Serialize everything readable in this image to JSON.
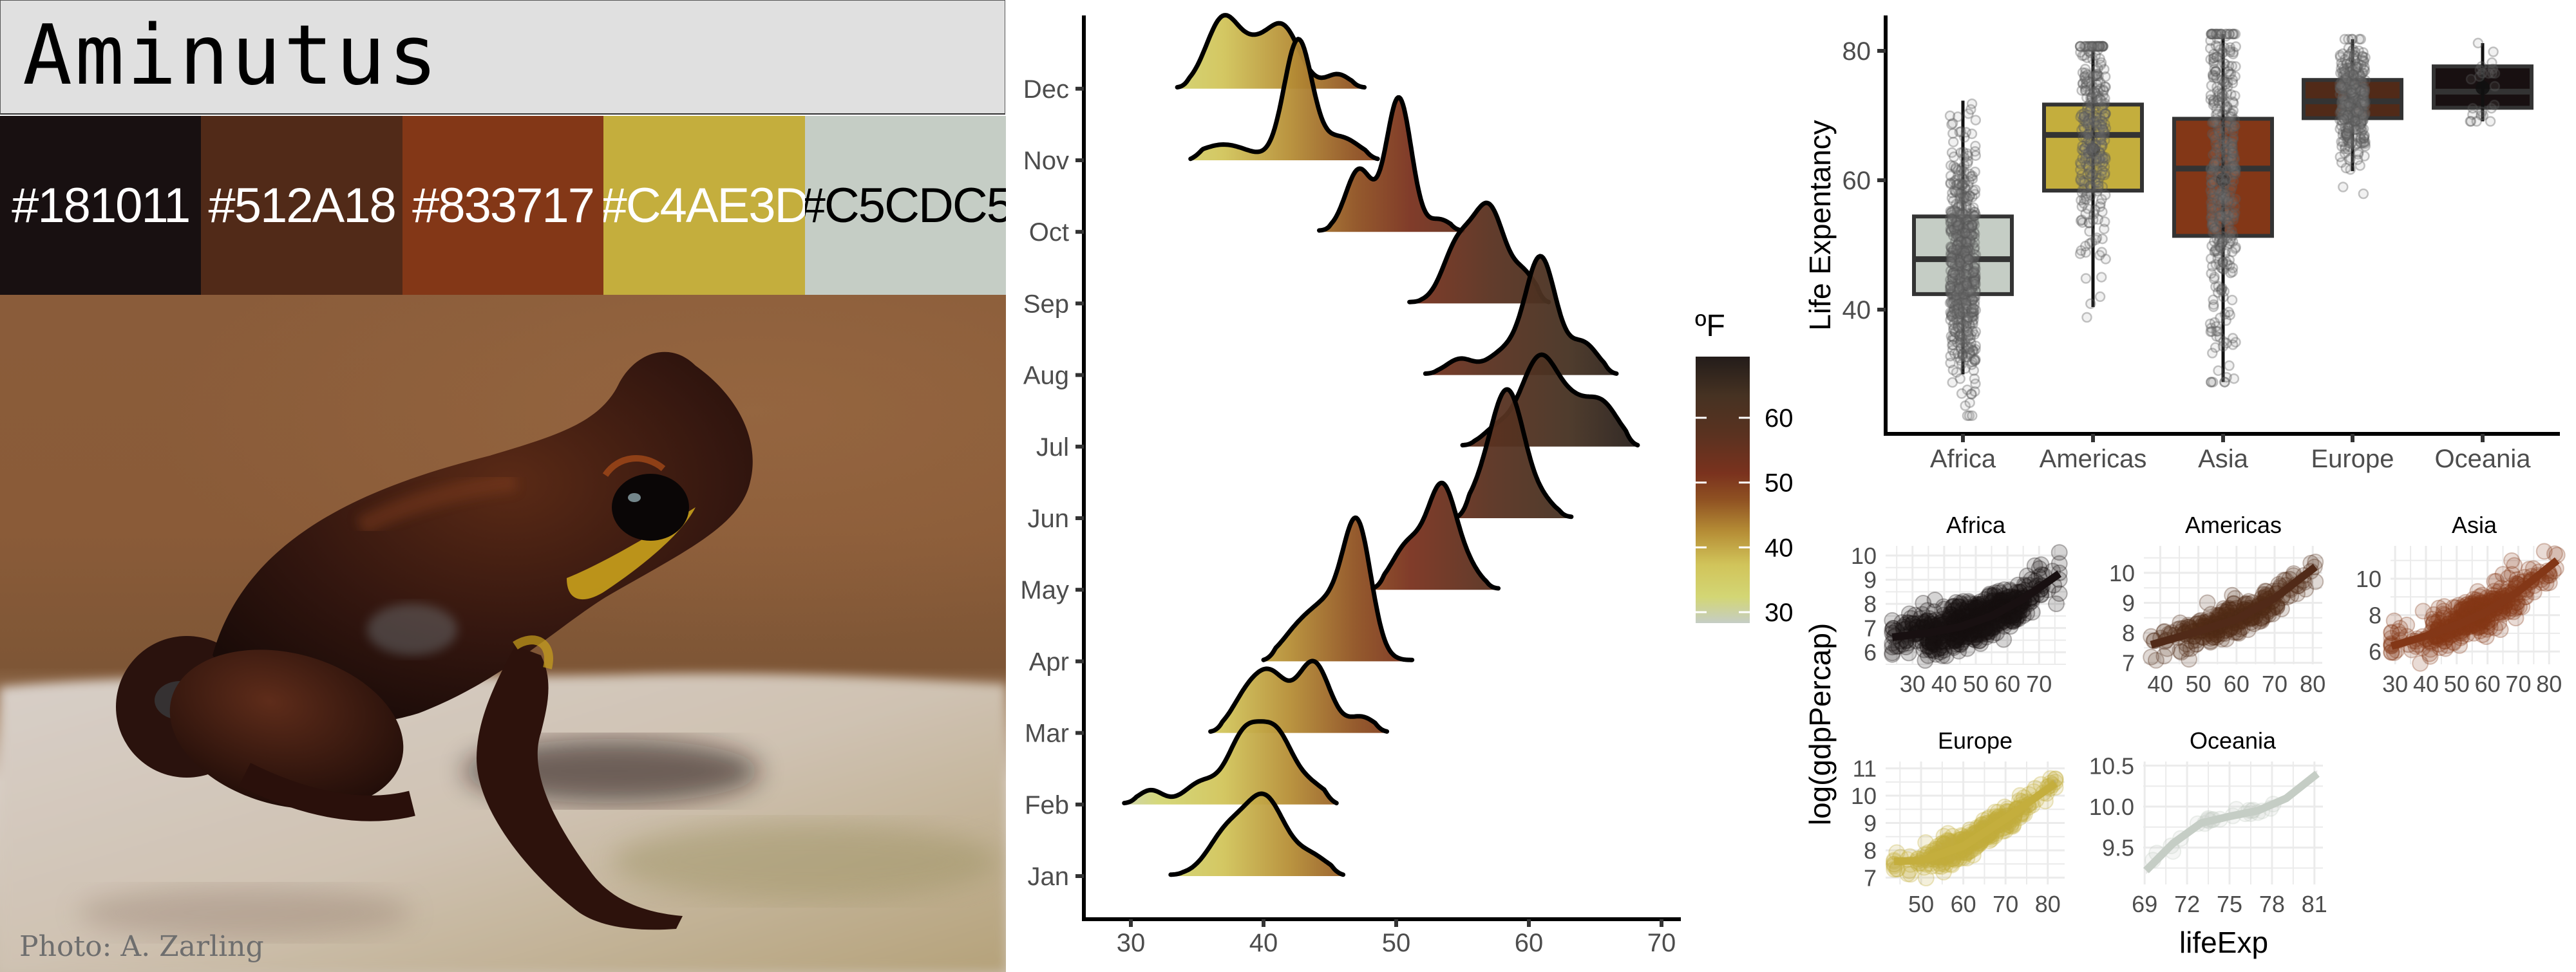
{
  "title": "Aminutus",
  "palette": [
    {
      "hex": "#181011",
      "label": "#181011",
      "text_color": "#ffffff"
    },
    {
      "hex": "#512A18",
      "label": "#512A18",
      "text_color": "#ffffff"
    },
    {
      "hex": "#833717",
      "label": "#833717",
      "text_color": "#ffffff"
    },
    {
      "hex": "#C4AE3D",
      "label": "#C4AE3D",
      "text_color": "#ffffff"
    },
    {
      "hex": "#C5CDC5",
      "label": "#C5CDC5",
      "text_color": "#000000"
    }
  ],
  "photo": {
    "credit": "Photo: A. Zarling",
    "subject": "frog-photo"
  },
  "chart_data": [
    {
      "type": "ridgeline",
      "title": "",
      "xlabel": "",
      "ylabel": "",
      "xlim": [
        26.5,
        71.5
      ],
      "x_ticks": [
        "30",
        "40",
        "50",
        "60",
        "70"
      ],
      "x_tick_values": [
        30,
        40,
        50,
        60,
        70
      ],
      "categories": [
        "Jan",
        "Feb",
        "Mar",
        "Apr",
        "May",
        "Jun",
        "Jul",
        "Aug",
        "Sep",
        "Oct",
        "Nov",
        "Dec"
      ],
      "fill_scale": {
        "title": "ºF",
        "ticks": [
          "30",
          "40",
          "50",
          "60"
        ],
        "tick_values": [
          30,
          40,
          50,
          60
        ],
        "range": [
          28,
          69
        ],
        "stops": [
          {
            "v": 28,
            "c": "#C5CDC5"
          },
          {
            "v": 32,
            "c": "#D3D675"
          },
          {
            "v": 37,
            "c": "#D1C45A"
          },
          {
            "v": 42,
            "c": "#B68E36"
          },
          {
            "v": 47,
            "c": "#8F5122"
          },
          {
            "v": 51,
            "c": "#7A321E"
          },
          {
            "v": 57,
            "c": "#5A3220"
          },
          {
            "v": 63,
            "c": "#463222"
          },
          {
            "v": 69,
            "c": "#231C1A"
          }
        ]
      },
      "series": [
        {
          "name": "Jan",
          "range": [
            33,
            46
          ],
          "components": [
            {
              "mu": 40.1,
              "sd": 1.5,
              "w": 1.05
            },
            {
              "mu": 37.2,
              "sd": 1.4,
              "w": 0.55
            },
            {
              "mu": 43.6,
              "sd": 1.3,
              "w": 0.25
            }
          ]
        },
        {
          "name": "Feb",
          "range": [
            29.5,
            45.5
          ],
          "components": [
            {
              "mu": 38.6,
              "sd": 1.3,
              "w": 0.95
            },
            {
              "mu": 41.0,
              "sd": 1.2,
              "w": 0.85
            },
            {
              "mu": 31.5,
              "sd": 0.9,
              "w": 0.18
            },
            {
              "mu": 35.3,
              "sd": 1.2,
              "w": 0.28
            },
            {
              "mu": 43.5,
              "sd": 1.3,
              "w": 0.25
            }
          ]
        },
        {
          "name": "Mar",
          "range": [
            36,
            49.3
          ],
          "components": [
            {
              "mu": 40.5,
              "sd": 1.3,
              "w": 0.78
            },
            {
              "mu": 43.8,
              "sd": 1.2,
              "w": 0.95
            },
            {
              "mu": 38.5,
              "sd": 1.1,
              "w": 0.35
            },
            {
              "mu": 47.4,
              "sd": 1.0,
              "w": 0.2
            }
          ]
        },
        {
          "name": "Apr",
          "range": [
            40,
            51.2
          ],
          "components": [
            {
              "mu": 47.1,
              "sd": 1.05,
              "w": 1.7
            },
            {
              "mu": 44.8,
              "sd": 1.6,
              "w": 0.75
            },
            {
              "mu": 42.3,
              "sd": 1.2,
              "w": 0.25
            }
          ]
        },
        {
          "name": "May",
          "range": [
            48.2,
            57.7
          ],
          "components": [
            {
              "mu": 53.5,
              "sd": 1.1,
              "w": 1.4
            },
            {
              "mu": 50.9,
              "sd": 1.2,
              "w": 0.6
            },
            {
              "mu": 55.6,
              "sd": 0.9,
              "w": 0.2
            }
          ]
        },
        {
          "name": "Jun",
          "range": [
            54.6,
            63.2
          ],
          "components": [
            {
              "mu": 58.4,
              "sd": 1.3,
              "w": 1.75
            },
            {
              "mu": 56.2,
              "sd": 1.1,
              "w": 0.2
            },
            {
              "mu": 61.2,
              "sd": 0.9,
              "w": 0.15
            }
          ]
        },
        {
          "name": "Jul",
          "range": [
            55,
            68.2
          ],
          "components": [
            {
              "mu": 60.9,
              "sd": 1.5,
              "w": 1.25
            },
            {
              "mu": 65.4,
              "sd": 1.3,
              "w": 0.6
            },
            {
              "mu": 57.5,
              "sd": 1.0,
              "w": 0.2
            },
            {
              "mu": 63.4,
              "sd": 1.0,
              "w": 0.25
            }
          ]
        },
        {
          "name": "Aug",
          "range": [
            52.2,
            66.6
          ],
          "components": [
            {
              "mu": 60.9,
              "sd": 1.15,
              "w": 1.6
            },
            {
              "mu": 64.1,
              "sd": 1.1,
              "w": 0.42
            },
            {
              "mu": 54.8,
              "sd": 1.0,
              "w": 0.2
            },
            {
              "mu": 58.2,
              "sd": 1.3,
              "w": 0.3
            }
          ]
        },
        {
          "name": "Sep",
          "range": [
            51,
            61.5
          ],
          "components": [
            {
              "mu": 57.0,
              "sd": 1.2,
              "w": 1.3
            },
            {
              "mu": 54.6,
              "sd": 1.1,
              "w": 0.75
            },
            {
              "mu": 59.7,
              "sd": 0.9,
              "w": 0.35
            }
          ]
        },
        {
          "name": "Oct",
          "range": [
            44.2,
            55
          ],
          "components": [
            {
              "mu": 50.2,
              "sd": 0.95,
              "w": 1.85
            },
            {
              "mu": 47.2,
              "sd": 1.0,
              "w": 0.85
            },
            {
              "mu": 53.3,
              "sd": 0.8,
              "w": 0.15
            }
          ]
        },
        {
          "name": "Nov",
          "range": [
            34.5,
            48.6
          ],
          "components": [
            {
              "mu": 42.6,
              "sd": 1.05,
              "w": 1.65
            },
            {
              "mu": 37.0,
              "sd": 1.8,
              "w": 0.2
            },
            {
              "mu": 45.8,
              "sd": 1.4,
              "w": 0.3
            }
          ]
        },
        {
          "name": "Dec",
          "range": [
            33.5,
            47.6
          ],
          "components": [
            {
              "mu": 37.0,
              "sd": 1.3,
              "w": 0.98
            },
            {
              "mu": 41.4,
              "sd": 1.3,
              "w": 0.85
            },
            {
              "mu": 39.3,
              "sd": 1.0,
              "w": 0.3
            },
            {
              "mu": 45.6,
              "sd": 0.9,
              "w": 0.18
            }
          ]
        }
      ]
    },
    {
      "type": "box",
      "title": "",
      "xlabel": "",
      "ylabel": "Life Expentancy",
      "ylim": [
        21,
        86.5
      ],
      "y_ticks": [
        "40",
        "60",
        "80"
      ],
      "y_tick_values": [
        40,
        60,
        80
      ],
      "categories": [
        "Africa",
        "Americas",
        "Asia",
        "Europe",
        "Oceania"
      ],
      "series": [
        {
          "name": "Africa",
          "fill": "#C5CDC5",
          "q1": 42.4,
          "median": 47.8,
          "q3": 54.4,
          "whisker_low": 30.0,
          "whisker_high": 72.3,
          "mean": 48.9,
          "points_n": 624,
          "points_range": [
            23.6,
            76.4
          ]
        },
        {
          "name": "Americas",
          "fill": "#C4AE3D",
          "q1": 58.4,
          "median": 67.0,
          "q3": 71.7,
          "whisker_low": 40.4,
          "whisker_high": 80.6,
          "mean": 64.7,
          "points_n": 300,
          "points_range": [
            37.6,
            80.7
          ]
        },
        {
          "name": "Asia",
          "fill": "#833717",
          "q1": 51.4,
          "median": 61.8,
          "q3": 69.5,
          "whisker_low": 28.8,
          "whisker_high": 82.6,
          "mean": 60.1,
          "points_n": 396,
          "points_range": [
            28.8,
            82.6
          ]
        },
        {
          "name": "Europe",
          "fill": "#512A18",
          "q1": 69.6,
          "median": 72.2,
          "q3": 75.5,
          "whisker_low": 61.4,
          "whisker_high": 81.8,
          "mean": 71.9,
          "points_n": 360,
          "points_range": [
            43.6,
            81.8
          ]
        },
        {
          "name": "Oceania",
          "fill": "#181011",
          "q1": 71.2,
          "median": 73.7,
          "q3": 77.6,
          "whisker_low": 69.1,
          "whisker_high": 81.2,
          "mean": 74.3,
          "points_n": 24,
          "points_range": [
            69.1,
            81.2
          ]
        }
      ]
    },
    {
      "type": "scatter",
      "facets": true,
      "xlabel": "lifeExp",
      "ylabel": "log(gdpPercap)",
      "panels": [
        {
          "name": "Africa",
          "color": "#181011",
          "xlim": [
            21.5,
            78.5
          ],
          "ylim": [
            5.5,
            10.4
          ],
          "x_ticks": [
            "30",
            "40",
            "50",
            "60",
            "70"
          ],
          "x_tick_values": [
            30,
            40,
            50,
            60,
            70
          ],
          "y_ticks": [
            "6",
            "7",
            "8",
            "9",
            "10"
          ],
          "y_tick_values": [
            6,
            7,
            8,
            9,
            10
          ],
          "smooth": [
            [
              23.6,
              6.62
            ],
            [
              35,
              6.8
            ],
            [
              45,
              7.05
            ],
            [
              55,
              7.5
            ],
            [
              65,
              8.2
            ],
            [
              76.4,
              9.25
            ]
          ],
          "cloud": {
            "n": 624,
            "x": [
              23.6,
              76.4
            ],
            "spread": 0.75
          }
        },
        {
          "name": "Americas",
          "color": "#512A18",
          "xlim": [
            35.7,
            82.5
          ],
          "ylim": [
            6.95,
            10.9
          ],
          "x_ticks": [
            "40",
            "50",
            "60",
            "70",
            "80"
          ],
          "x_tick_values": [
            40,
            50,
            60,
            70,
            80
          ],
          "y_ticks": [
            "7",
            "8",
            "9",
            "10"
          ],
          "y_tick_values": [
            7,
            8,
            9,
            10
          ],
          "smooth": [
            [
              37.6,
              7.6
            ],
            [
              50,
              8.05
            ],
            [
              60,
              8.45
            ],
            [
              70,
              9.15
            ],
            [
              80.7,
              10.2
            ]
          ],
          "cloud": {
            "n": 300,
            "x": [
              37.6,
              80.7
            ],
            "spread": 0.5
          }
        },
        {
          "name": "Asia",
          "color": "#833717",
          "xlim": [
            28.5,
            83.5
          ],
          "ylim": [
            5.3,
            11.8
          ],
          "x_ticks": [
            "30",
            "40",
            "50",
            "60",
            "70",
            "80"
          ],
          "x_tick_values": [
            30,
            40,
            50,
            60,
            70,
            80
          ],
          "y_ticks": [
            "6",
            "8",
            "10"
          ],
          "y_tick_values": [
            6,
            8,
            10
          ],
          "smooth": [
            [
              28.8,
              6.3
            ],
            [
              40,
              6.85
            ],
            [
              50,
              7.45
            ],
            [
              60,
              8.2
            ],
            [
              70,
              9.3
            ],
            [
              82.6,
              11.0
            ]
          ],
          "cloud": {
            "n": 396,
            "x": [
              28.8,
              82.6
            ],
            "spread": 0.9
          }
        },
        {
          "name": "Europe",
          "color": "#C4AE3D",
          "xlim": [
            41.6,
            84.0
          ],
          "ylim": [
            6.75,
            11.25
          ],
          "x_ticks": [
            "50",
            "60",
            "70",
            "80"
          ],
          "x_tick_values": [
            50,
            60,
            70,
            80
          ],
          "y_ticks": [
            "7",
            "8",
            "9",
            "10",
            "11"
          ],
          "y_tick_values": [
            7,
            8,
            9,
            10,
            11
          ],
          "smooth": [
            [
              43.6,
              7.6
            ],
            [
              50,
              7.62
            ],
            [
              60,
              8.15
            ],
            [
              70,
              9.15
            ],
            [
              81.8,
              10.45
            ]
          ],
          "cloud": {
            "n": 360,
            "x": [
              43.6,
              81.8
            ],
            "spread": 0.4
          }
        },
        {
          "name": "Oceania",
          "color": "#C5CDC5",
          "xlim": [
            68.9,
            81.6
          ],
          "ylim": [
            9.05,
            10.55
          ],
          "x_ticks": [
            "69",
            "72",
            "75",
            "78",
            "81"
          ],
          "x_tick_values": [
            69,
            72,
            75,
            78,
            81
          ],
          "y_ticks": [
            "9.5",
            "10.0",
            "10.5"
          ],
          "y_tick_values": [
            9.5,
            10.0,
            10.5
          ],
          "smooth": [
            [
              69.1,
              9.22
            ],
            [
              71,
              9.55
            ],
            [
              73,
              9.8
            ],
            [
              75,
              9.88
            ],
            [
              77,
              9.95
            ],
            [
              79,
              10.1
            ],
            [
              81.2,
              10.4
            ]
          ],
          "cloud": {
            "n": 24,
            "x": [
              69.1,
              81.2
            ],
            "spread": 0.06
          }
        }
      ]
    }
  ]
}
